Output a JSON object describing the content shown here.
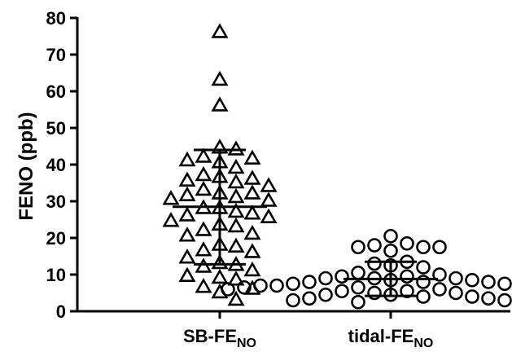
{
  "chart_data": {
    "type": "scatter",
    "subtype": "dot-plot",
    "title": "",
    "ylabel": "FENO (ppb)",
    "xlabel": "",
    "ylim": [
      0,
      80
    ],
    "yticks": [
      0,
      10,
      20,
      30,
      40,
      50,
      60,
      70,
      80
    ],
    "grid": false,
    "legend": "none",
    "colors": {
      "marker": "#000000",
      "axis": "#000000",
      "background": "#ffffff"
    },
    "categories": [
      {
        "label_main": "SB-FE",
        "label_sub": "NO"
      },
      {
        "label_main": "tidal-FE",
        "label_sub": "NO"
      }
    ],
    "series": [
      {
        "category_index": 0,
        "marker": "triangle",
        "mean": 28.5,
        "sd_upper": 44,
        "sd_lower": 12.8,
        "values": [
          76,
          63,
          56,
          44.5,
          44,
          42,
          41.5,
          41,
          40.5,
          39,
          37,
          36.5,
          36,
          35.5,
          35,
          34,
          33,
          32,
          32,
          31.5,
          31,
          30.5,
          30,
          28,
          28,
          27,
          26.5,
          26,
          25.5,
          24.5,
          23.5,
          23,
          22,
          21,
          20.5,
          18,
          17.5,
          16.5,
          16,
          14.5,
          13,
          12.5,
          12,
          11,
          9.5,
          9,
          8.5,
          6.5,
          6,
          5,
          3
        ]
      },
      {
        "category_index": 1,
        "marker": "circle",
        "mean": 8.8,
        "sd_upper": 13.5,
        "sd_lower": 4.2,
        "values": [
          20.5,
          18.5,
          18,
          17.5,
          17.5,
          17.5,
          16.5,
          13.5,
          13,
          12.5,
          12,
          10.5,
          10,
          9.5,
          9.5,
          9,
          9,
          9,
          8.5,
          8.5,
          8,
          8,
          8,
          7.5,
          7.5,
          7,
          7,
          7,
          6.5,
          6.5,
          6.5,
          6.5,
          6,
          6,
          6,
          5.5,
          5.5,
          5,
          5,
          4.5,
          4.5,
          4,
          4,
          3.5,
          3.5,
          3,
          3,
          2.5
        ]
      }
    ]
  }
}
